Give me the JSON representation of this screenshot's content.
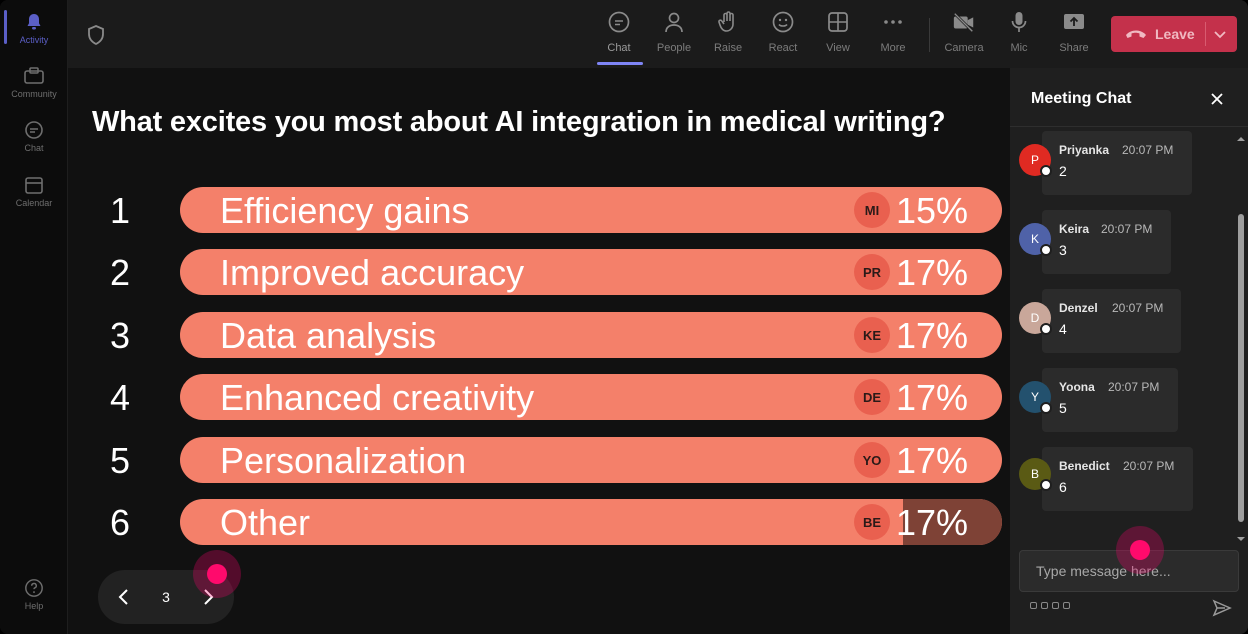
{
  "rail": {
    "items": [
      {
        "label": "Activity",
        "icon": "bell-icon"
      },
      {
        "label": "Community",
        "icon": "community-icon"
      },
      {
        "label": "Chat",
        "icon": "chat-icon"
      },
      {
        "label": "Calendar",
        "icon": "calendar-icon"
      }
    ],
    "help": {
      "label": "Help",
      "icon": "help-icon"
    }
  },
  "toolbar": {
    "chat": "Chat",
    "people": "People",
    "raise": "Raise",
    "react": "React",
    "view": "View",
    "more": "More",
    "camera": "Camera",
    "mic": "Mic",
    "share": "Share",
    "leave": "Leave"
  },
  "poll": {
    "question": "What excites you most about AI integration in medical writing?",
    "options": [
      {
        "num": "1",
        "text": "Efficiency gains",
        "badge": "MI",
        "pct": "15%",
        "fill": 1.0
      },
      {
        "num": "2",
        "text": "Improved accuracy",
        "badge": "PR",
        "pct": "17%",
        "fill": 1.0
      },
      {
        "num": "3",
        "text": "Data analysis",
        "badge": "KE",
        "pct": "17%",
        "fill": 1.0
      },
      {
        "num": "4",
        "text": "Enhanced creativity",
        "badge": "DE",
        "pct": "17%",
        "fill": 1.0
      },
      {
        "num": "5",
        "text": "Personalization",
        "badge": "YO",
        "pct": "17%",
        "fill": 1.0
      },
      {
        "num": "6",
        "text": "Other",
        "badge": "BE",
        "pct": "17%",
        "fill": 0.88
      }
    ]
  },
  "pager": {
    "page": "3"
  },
  "chat": {
    "title": "Meeting Chat",
    "messages": [
      {
        "name": "Priyanka",
        "time": "20:07 PM",
        "body": "2",
        "initial": "P",
        "color": "#e02a22"
      },
      {
        "name": "Keira",
        "time": "20:07 PM",
        "body": "3",
        "initial": "K",
        "color": "#4f62a8"
      },
      {
        "name": "Denzel",
        "time": "20:07 PM",
        "body": "4",
        "initial": "D",
        "color": "#c9a79a"
      },
      {
        "name": "Yoona",
        "time": "20:07 PM",
        "body": "5",
        "initial": "Y",
        "color": "#23516e"
      },
      {
        "name": "Benedict",
        "time": "20:07 PM",
        "body": "6",
        "initial": "B",
        "color": "#5a5a14"
      }
    ],
    "compose_placeholder": "Type message here..."
  },
  "colors": {
    "bar": "#f4806a",
    "bar_dark": "#7e4236",
    "leave": "#c4314b",
    "accent": "#5b5fc7",
    "cursor": "#ff0a6c"
  }
}
